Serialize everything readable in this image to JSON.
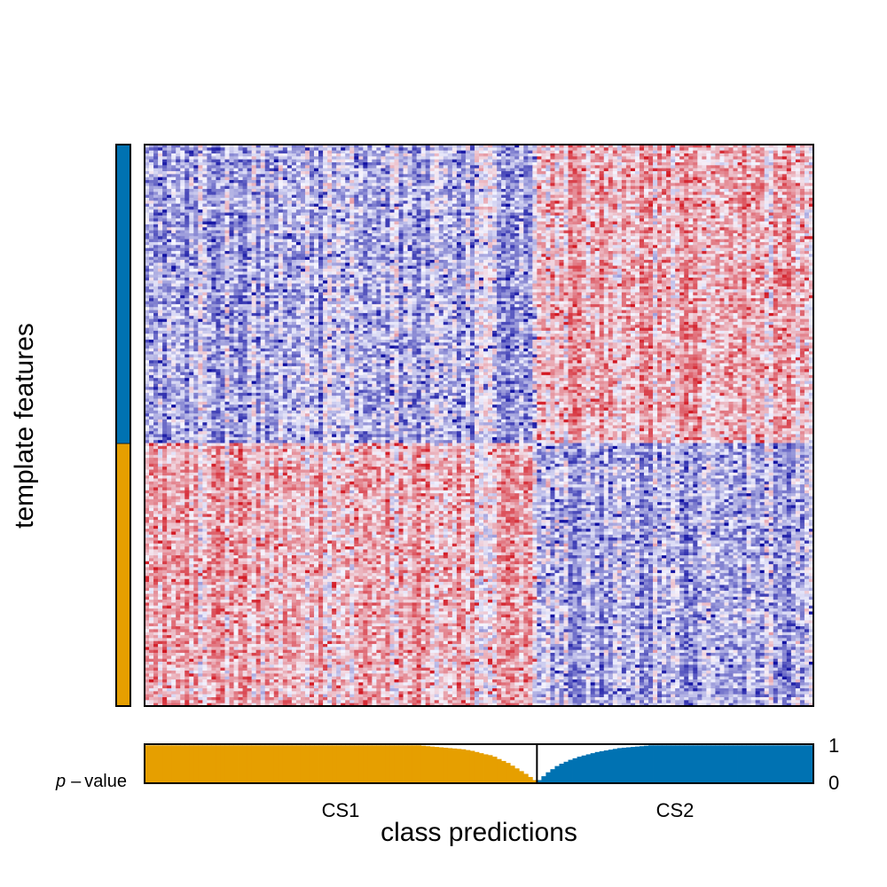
{
  "chart_data": {
    "type": "heatmap",
    "ylabel": "template features",
    "xlabel": "class predictions",
    "class_labels": [
      "CS1",
      "CS2"
    ],
    "pvalue_label": "value",
    "pvalue_label_prefix": "p",
    "pvalue_label_dash": "–",
    "pvalue_ticks": [
      "1",
      "0"
    ],
    "pvalue_range": [
      0,
      1
    ],
    "template_features": [
      {
        "class": "CS2",
        "fraction": 0.533,
        "color": "#0072b2"
      },
      {
        "class": "CS1",
        "fraction": 0.467,
        "color": "#e69f00"
      }
    ],
    "class_colors": {
      "CS1": "#e69f00",
      "CS2": "#0072b2"
    },
    "heatmap_colors": {
      "low": "#0a0aa0",
      "mid": "#f5f5ff",
      "high": "#d2141e"
    },
    "n_samples": 150,
    "n_features": 190,
    "cs1_samples": 88,
    "cs2_samples": 62,
    "cs1_pvalues": [
      0.97,
      0.97,
      0.97,
      0.97,
      0.97,
      0.97,
      0.97,
      0.97,
      0.97,
      0.97,
      0.97,
      0.97,
      0.97,
      0.97,
      0.97,
      0.97,
      0.97,
      0.97,
      0.97,
      0.97,
      0.97,
      0.97,
      0.97,
      0.97,
      0.97,
      0.97,
      0.97,
      0.97,
      0.97,
      0.97,
      0.97,
      0.97,
      0.97,
      0.97,
      0.97,
      0.97,
      0.97,
      0.97,
      0.97,
      0.97,
      0.97,
      0.97,
      0.97,
      0.97,
      0.97,
      0.97,
      0.97,
      0.97,
      0.97,
      0.97,
      0.97,
      0.97,
      0.97,
      0.97,
      0.97,
      0.97,
      0.97,
      0.97,
      0.97,
      0.97,
      0.97,
      0.97,
      0.96,
      0.95,
      0.94,
      0.93,
      0.92,
      0.91,
      0.9,
      0.89,
      0.88,
      0.87,
      0.85,
      0.83,
      0.8,
      0.77,
      0.74,
      0.72,
      0.68,
      0.62,
      0.57,
      0.52,
      0.45,
      0.38,
      0.31,
      0.24,
      0.16,
      0.08
    ],
    "cs2_pvalues": [
      0.08,
      0.18,
      0.28,
      0.36,
      0.44,
      0.5,
      0.55,
      0.6,
      0.64,
      0.68,
      0.71,
      0.74,
      0.77,
      0.8,
      0.82,
      0.84,
      0.86,
      0.88,
      0.9,
      0.91,
      0.92,
      0.93,
      0.94,
      0.95,
      0.96,
      0.97,
      0.97,
      0.97,
      0.97,
      0.97,
      0.97,
      0.97,
      0.97,
      0.97,
      0.97,
      0.97,
      0.97,
      0.97,
      0.97,
      0.97,
      0.97,
      0.97,
      0.97,
      0.97,
      0.97,
      0.97,
      0.97,
      0.97,
      0.97,
      0.97,
      0.97,
      0.97,
      0.97,
      0.97,
      0.97,
      0.97,
      0.97,
      0.97,
      0.97,
      0.97,
      0.97,
      0.97
    ]
  }
}
